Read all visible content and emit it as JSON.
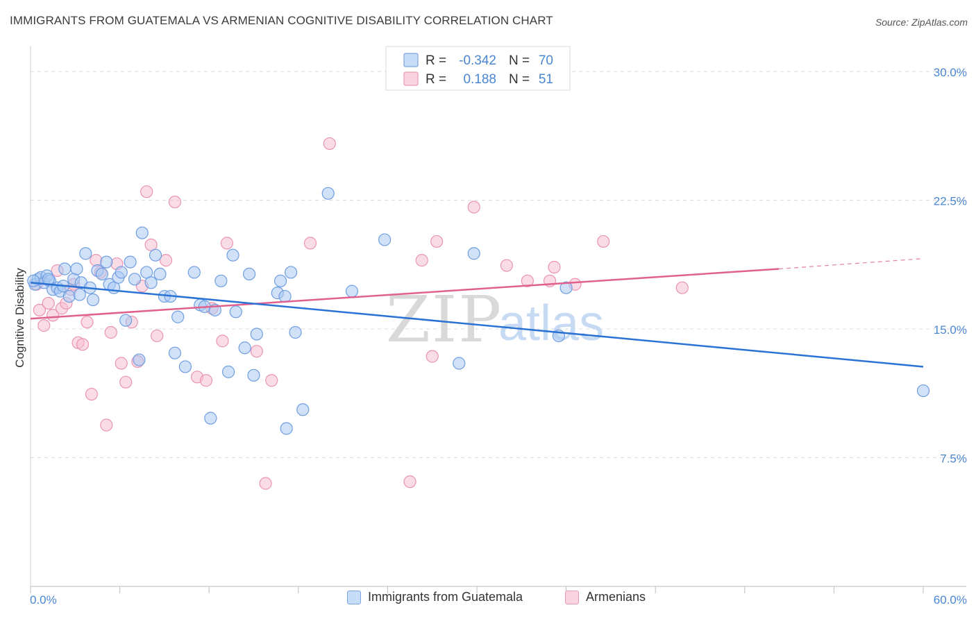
{
  "header": {
    "title": "IMMIGRANTS FROM GUATEMALA VS ARMENIAN COGNITIVE DISABILITY CORRELATION CHART",
    "source": "Source: ZipAtlas.com"
  },
  "watermark": {
    "zip": "ZIP",
    "atlas": "atlas"
  },
  "colors": {
    "blue_fill": "#a9c8f2",
    "blue_stroke": "#6f9ee0",
    "blue_line": "#2a72d4",
    "pink_fill": "#f6bfd2",
    "pink_stroke": "#ea93b2",
    "pink_line": "#e0608e",
    "axis_text": "#4a86d0",
    "grid": "#dcdcdc"
  },
  "stats_legend": [
    {
      "r_label": "R =",
      "r_value": "-0.342",
      "n_label": "N =",
      "n_value": "70",
      "color": "blue"
    },
    {
      "r_label": "R =",
      "r_value": "0.188",
      "n_label": "N =",
      "n_value": "51",
      "color": "pink"
    }
  ],
  "chart_data": {
    "type": "scatter",
    "title": "IMMIGRANTS FROM GUATEMALA VS ARMENIAN COGNITIVE DISABILITY CORRELATION CHART",
    "xlabel": "",
    "ylabel": "Cognitive Disability",
    "xlim": [
      0,
      60
    ],
    "ylim": [
      0,
      31.5
    ],
    "x_tick_labels": [
      "0.0%",
      "60.0%"
    ],
    "y_ticks": [
      7.5,
      15.0,
      22.5,
      30.0
    ],
    "y_tick_labels": [
      "7.5%",
      "15.0%",
      "22.5%",
      "30.0%"
    ],
    "grid": "horizontal dashed",
    "legend_position": "top-center",
    "series": [
      {
        "name": "Immigrants from Guatemala",
        "color": "blue",
        "points": [
          [
            0.3,
            17.6
          ],
          [
            0.5,
            17.9
          ],
          [
            0.7,
            18.0
          ],
          [
            0.9,
            17.7
          ],
          [
            1.1,
            18.1
          ],
          [
            1.3,
            17.8
          ],
          [
            1.5,
            17.3
          ],
          [
            1.8,
            17.4
          ],
          [
            2.0,
            17.2
          ],
          [
            2.3,
            18.5
          ],
          [
            2.6,
            16.9
          ],
          [
            2.9,
            17.9
          ],
          [
            3.1,
            18.5
          ],
          [
            3.4,
            17.7
          ],
          [
            3.7,
            19.4
          ],
          [
            4.0,
            17.4
          ],
          [
            4.2,
            16.7
          ],
          [
            4.5,
            18.4
          ],
          [
            4.8,
            18.2
          ],
          [
            5.1,
            18.9
          ],
          [
            5.3,
            17.6
          ],
          [
            5.6,
            17.4
          ],
          [
            5.9,
            18.0
          ],
          [
            6.1,
            18.3
          ],
          [
            6.4,
            15.5
          ],
          [
            6.7,
            18.9
          ],
          [
            7.0,
            17.9
          ],
          [
            7.3,
            13.2
          ],
          [
            7.5,
            20.6
          ],
          [
            7.8,
            18.3
          ],
          [
            8.1,
            17.7
          ],
          [
            8.4,
            19.3
          ],
          [
            8.7,
            18.2
          ],
          [
            9.0,
            16.9
          ],
          [
            9.4,
            16.9
          ],
          [
            9.7,
            13.6
          ],
          [
            9.9,
            15.7
          ],
          [
            10.4,
            12.8
          ],
          [
            11.0,
            18.3
          ],
          [
            11.4,
            16.4
          ],
          [
            11.7,
            16.3
          ],
          [
            12.1,
            9.8
          ],
          [
            12.4,
            16.1
          ],
          [
            12.8,
            17.8
          ],
          [
            13.3,
            12.5
          ],
          [
            13.6,
            19.3
          ],
          [
            13.8,
            16.0
          ],
          [
            14.4,
            13.9
          ],
          [
            14.7,
            18.2
          ],
          [
            15.0,
            12.3
          ],
          [
            15.2,
            14.7
          ],
          [
            16.6,
            17.1
          ],
          [
            16.8,
            17.8
          ],
          [
            17.1,
            16.9
          ],
          [
            17.2,
            9.2
          ],
          [
            17.5,
            18.3
          ],
          [
            17.8,
            14.8
          ],
          [
            18.3,
            10.3
          ],
          [
            20.0,
            22.9
          ],
          [
            21.6,
            17.2
          ],
          [
            23.8,
            20.2
          ],
          [
            28.8,
            13.0
          ],
          [
            29.8,
            19.4
          ],
          [
            35.5,
            14.6
          ],
          [
            36.0,
            17.4
          ],
          [
            60.0,
            11.4
          ],
          [
            1.2,
            17.9
          ],
          [
            3.3,
            17.0
          ],
          [
            2.2,
            17.5
          ],
          [
            0.2,
            17.8
          ]
        ],
        "trend": {
          "x": [
            0,
            60
          ],
          "y": [
            17.7,
            12.8
          ]
        }
      },
      {
        "name": "Armenians",
        "color": "pink",
        "points": [
          [
            0.4,
            17.6
          ],
          [
            0.6,
            16.1
          ],
          [
            0.9,
            15.2
          ],
          [
            1.2,
            16.5
          ],
          [
            1.5,
            15.8
          ],
          [
            1.8,
            18.4
          ],
          [
            2.1,
            16.2
          ],
          [
            2.4,
            16.5
          ],
          [
            2.7,
            17.3
          ],
          [
            2.9,
            17.6
          ],
          [
            3.2,
            14.2
          ],
          [
            3.5,
            14.1
          ],
          [
            3.8,
            15.4
          ],
          [
            4.1,
            11.2
          ],
          [
            4.4,
            19.0
          ],
          [
            4.7,
            18.3
          ],
          [
            5.1,
            9.4
          ],
          [
            5.4,
            14.8
          ],
          [
            5.8,
            18.8
          ],
          [
            6.1,
            13.0
          ],
          [
            6.4,
            11.9
          ],
          [
            6.8,
            15.4
          ],
          [
            7.2,
            13.1
          ],
          [
            7.5,
            17.5
          ],
          [
            7.8,
            23.0
          ],
          [
            8.1,
            19.9
          ],
          [
            8.5,
            14.6
          ],
          [
            9.1,
            19.0
          ],
          [
            9.7,
            22.4
          ],
          [
            11.2,
            12.2
          ],
          [
            11.8,
            12.0
          ],
          [
            12.2,
            16.2
          ],
          [
            12.9,
            14.3
          ],
          [
            13.2,
            20.0
          ],
          [
            15.2,
            13.7
          ],
          [
            15.8,
            6.0
          ],
          [
            16.2,
            12.0
          ],
          [
            18.8,
            20.0
          ],
          [
            20.1,
            25.8
          ],
          [
            25.5,
            6.1
          ],
          [
            26.3,
            19.0
          ],
          [
            27.0,
            13.4
          ],
          [
            27.3,
            20.1
          ],
          [
            29.8,
            22.1
          ],
          [
            32.0,
            18.7
          ],
          [
            33.4,
            17.8
          ],
          [
            34.9,
            17.8
          ],
          [
            35.2,
            18.6
          ],
          [
            36.6,
            17.6
          ],
          [
            38.5,
            20.1
          ],
          [
            43.8,
            17.4
          ]
        ],
        "trend": {
          "x": [
            0,
            50.3
          ],
          "y": [
            15.6,
            18.5
          ]
        },
        "trend_dashed": {
          "x": [
            50.3,
            60
          ],
          "y": [
            18.5,
            19.1
          ]
        }
      }
    ]
  }
}
